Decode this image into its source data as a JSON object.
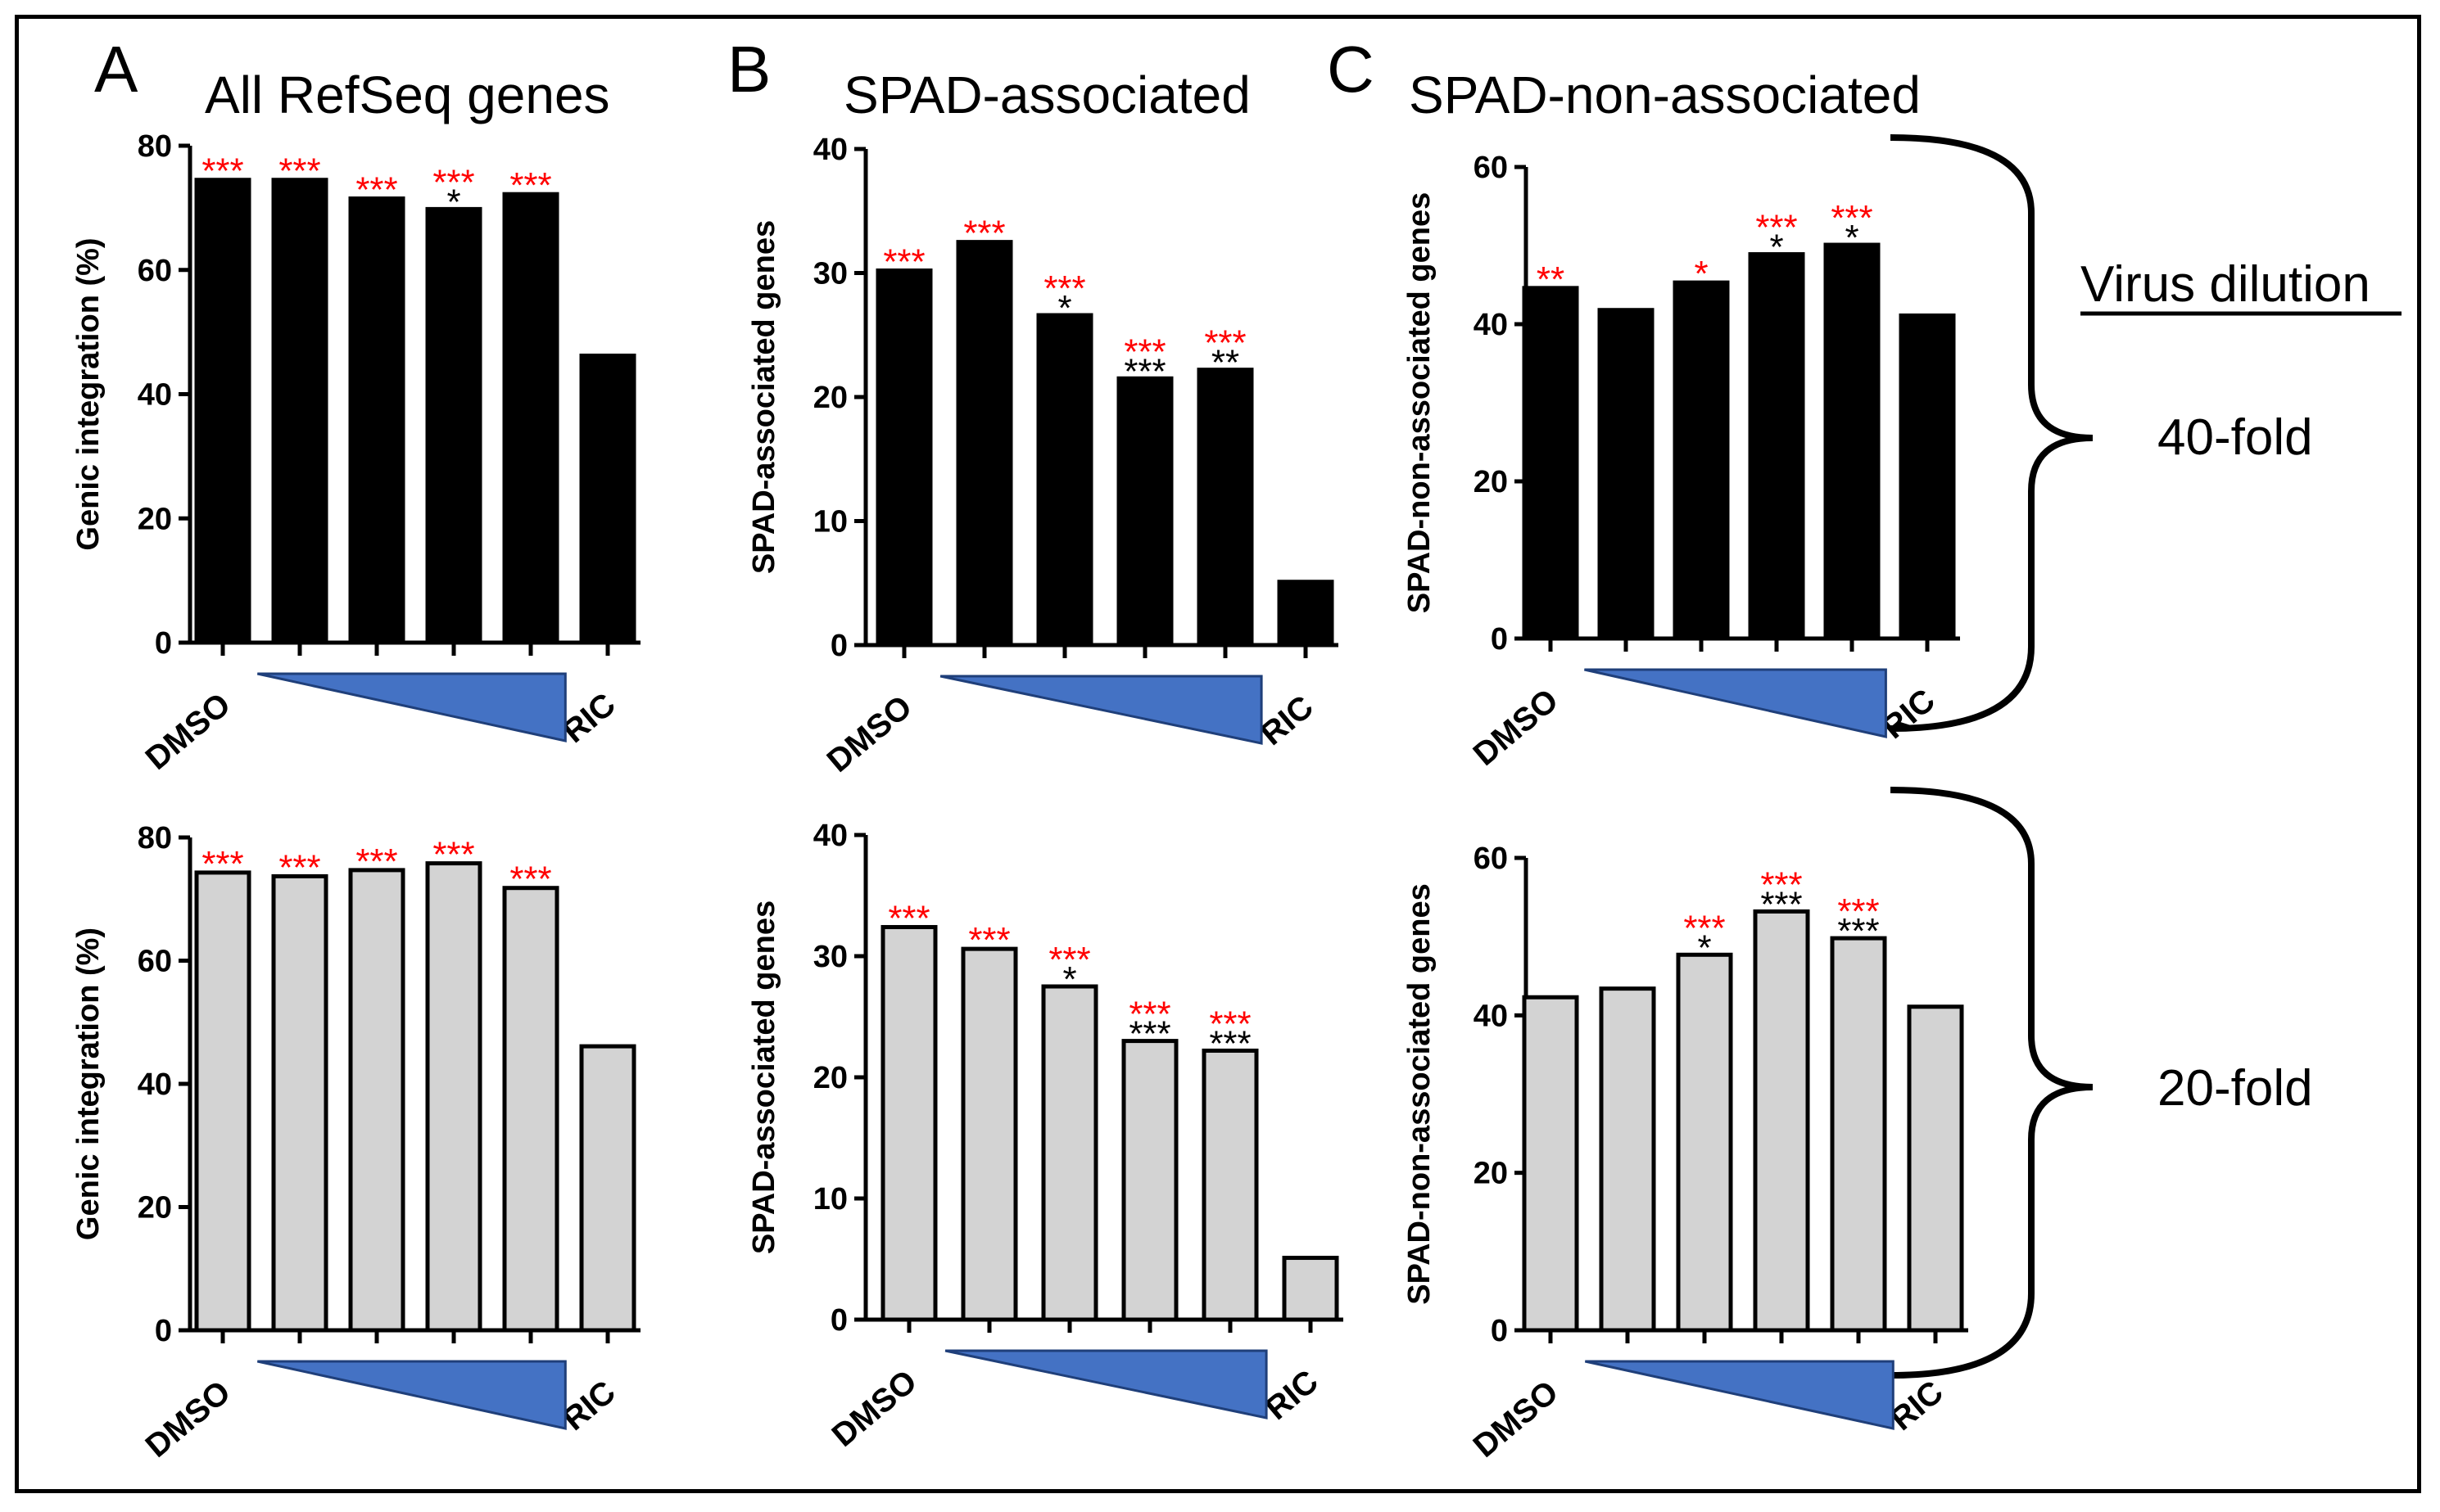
{
  "colors": {
    "bar_top": "#000000",
    "bar_bottom": "#d3d3d3",
    "star_red": "#ff0000",
    "star_black": "#000000",
    "wedge": "#4472c4"
  },
  "side": {
    "virus_dilution": "Virus dilution",
    "fold_top": "40-fold",
    "fold_bottom": "20-fold"
  },
  "panels": [
    {
      "letter": "A",
      "title": "All RefSeq genes"
    },
    {
      "letter": "B",
      "title": "SPAD-associated"
    },
    {
      "letter": "C",
      "title": "SPAD-non-associated"
    }
  ],
  "chart_data": [
    {
      "id": "A-40",
      "type": "bar",
      "row": "40-fold",
      "ylabel": "Genic integration (%)",
      "ylim": [
        0,
        80
      ],
      "yticks": [
        0,
        20,
        40,
        60,
        80
      ],
      "categories": [
        "DMSO",
        "",
        "",
        "",
        "",
        "RIC"
      ],
      "values": [
        74.5,
        74.5,
        71.5,
        69.8,
        72.2,
        46.2
      ],
      "stars_red": [
        "***",
        "***",
        "***",
        "***",
        "***",
        ""
      ],
      "stars_black": [
        "",
        "",
        "",
        "*",
        "",
        ""
      ]
    },
    {
      "id": "B-40",
      "type": "bar",
      "row": "40-fold",
      "ylabel": "SPAD-associated genes",
      "ylim": [
        0,
        40
      ],
      "yticks": [
        0,
        10,
        20,
        30,
        40
      ],
      "categories": [
        "DMSO",
        "",
        "",
        "",
        "",
        "RIC"
      ],
      "values": [
        30.2,
        32.5,
        26.6,
        21.5,
        22.2,
        5.1
      ],
      "stars_red": [
        "***",
        "***",
        "***",
        "***",
        "***",
        ""
      ],
      "stars_black": [
        "",
        "",
        "*",
        "***",
        "**",
        ""
      ]
    },
    {
      "id": "C-40",
      "type": "bar",
      "row": "40-fold",
      "ylabel": "SPAD-non-associated genes",
      "ylim": [
        0,
        60
      ],
      "yticks": [
        0,
        20,
        40,
        60
      ],
      "categories": [
        "DMSO",
        "",
        "",
        "",
        "",
        "RIC"
      ],
      "values": [
        44.6,
        41.8,
        45.3,
        48.9,
        50.1,
        41.1
      ],
      "stars_red": [
        "**",
        "",
        "*",
        "***",
        "***",
        ""
      ],
      "stars_black": [
        "",
        "",
        "",
        "*",
        "*",
        ""
      ]
    },
    {
      "id": "A-20",
      "type": "bar",
      "row": "20-fold",
      "ylabel": "Genic integration (%)",
      "ylim": [
        0,
        80
      ],
      "yticks": [
        0,
        20,
        40,
        60,
        80
      ],
      "categories": [
        "DMSO",
        "",
        "",
        "",
        "",
        "RIC"
      ],
      "values": [
        74.3,
        73.7,
        74.7,
        75.8,
        71.8,
        46.1
      ],
      "stars_red": [
        "***",
        "***",
        "***",
        "***",
        "***",
        ""
      ],
      "stars_black": [
        "",
        "",
        "",
        "",
        "",
        ""
      ]
    },
    {
      "id": "B-20",
      "type": "bar",
      "row": "20-fold",
      "ylabel": "SPAD-associated genes",
      "ylim": [
        0,
        40
      ],
      "yticks": [
        0,
        10,
        20,
        30,
        40
      ],
      "categories": [
        "DMSO",
        "",
        "",
        "",
        "",
        "RIC"
      ],
      "values": [
        32.4,
        30.6,
        27.5,
        23.0,
        22.2,
        5.1
      ],
      "stars_red": [
        "***",
        "***",
        "***",
        "***",
        "***",
        ""
      ],
      "stars_black": [
        "",
        "",
        "*",
        "***",
        "***",
        ""
      ]
    },
    {
      "id": "C-20",
      "type": "bar",
      "row": "20-fold",
      "ylabel": "SPAD-non-associated genes",
      "ylim": [
        0,
        60
      ],
      "yticks": [
        0,
        20,
        40,
        60
      ],
      "categories": [
        "DMSO",
        "",
        "",
        "",
        "",
        "RIC"
      ],
      "values": [
        42.3,
        43.4,
        47.7,
        53.2,
        49.8,
        41.1
      ],
      "stars_red": [
        "",
        "",
        "***",
        "***",
        "***",
        ""
      ],
      "stars_black": [
        "",
        "",
        "*",
        "***",
        "***",
        ""
      ]
    }
  ]
}
